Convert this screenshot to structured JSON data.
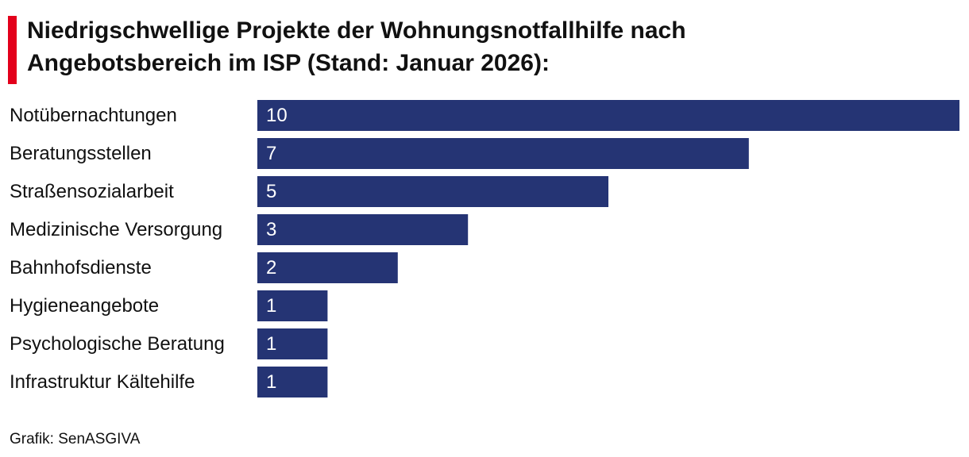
{
  "title_line1": "Niedrigschwellige Projekte der Wohnungsnotfallhilfe nach",
  "title_line2": "Angebotsbereich im ISP (Stand: Januar 2026):",
  "source": "Grafik: SenASGIVA",
  "colors": {
    "accent": "#e3001b",
    "bar": "#253474",
    "bar_label": "#ffffff",
    "text": "#111111"
  },
  "chart_data": {
    "type": "bar",
    "orientation": "horizontal",
    "categories": [
      "Notübernachtungen",
      "Beratungsstellen",
      "Straßensozialarbeit",
      "Medizinische Versorgung",
      "Bahnhofsdienste",
      "Hygieneangebote",
      "Psychologische Beratung",
      "Infrastruktur Kältehilfe"
    ],
    "values": [
      10,
      7,
      5,
      3,
      2,
      1,
      1,
      1
    ],
    "xlim": [
      0,
      10
    ],
    "grid": false,
    "legend": "none",
    "data_labels": "inside-left"
  }
}
